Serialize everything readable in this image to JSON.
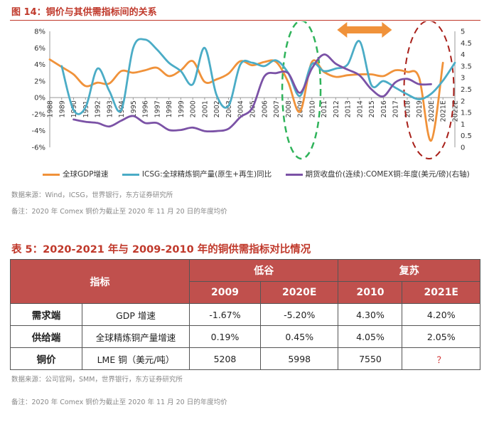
{
  "figure": {
    "title": "图 14：铜价与其供需指标间的关系",
    "source": "数据来源：Wind，ICSG，世界银行，东方证券研究所",
    "note": "备注：2020 年 Comex 铜价为截止至 2020 年 11 月 20 日的年度均价"
  },
  "chart_data": {
    "type": "line",
    "categories": [
      "1988",
      "1989",
      "1990",
      "1991",
      "1992",
      "1993",
      "1994",
      "1995",
      "1996",
      "1997",
      "1998",
      "1999",
      "2000",
      "2001",
      "2002",
      "2003",
      "2004",
      "2005",
      "2006",
      "2007",
      "2008",
      "2009",
      "2010",
      "2011",
      "2012",
      "2013",
      "2014",
      "2015",
      "2016",
      "2017",
      "2018",
      "2019",
      "2020E",
      "2021E",
      "2022E"
    ],
    "y_left": {
      "min": -6,
      "max": 8,
      "step": 2,
      "tick_labels": [
        "-6%",
        "-4%",
        "-2%",
        "0%",
        "2%",
        "4%",
        "6%",
        "8%"
      ]
    },
    "y_right": {
      "min": 0,
      "max": 5,
      "step": 0.5,
      "tick_labels": [
        "0",
        "0.5",
        "1",
        "1.5",
        "2",
        "2.5",
        "3",
        "3.5",
        "4",
        "4.5",
        "5"
      ]
    },
    "series": [
      {
        "name": "全球GDP增速",
        "axis": "left",
        "color": "#f0923a",
        "values": [
          4.6,
          3.7,
          2.8,
          1.4,
          1.8,
          1.7,
          3.2,
          3.0,
          3.3,
          3.6,
          2.6,
          3.3,
          4.4,
          1.9,
          2.2,
          2.9,
          4.4,
          3.9,
          4.3,
          4.3,
          1.9,
          -1.7,
          4.3,
          3.1,
          2.5,
          2.7,
          2.8,
          2.8,
          2.6,
          3.3,
          3.1,
          2.4,
          -5.2,
          4.2,
          null
        ]
      },
      {
        "name": "ICSG:全球精炼铜产量(原生+再生)同比",
        "axis": "left",
        "color": "#4bacc6",
        "values": [
          null,
          3.8,
          -1.5,
          -1.2,
          3.5,
          0.8,
          -1.5,
          6.0,
          7.0,
          5.8,
          4.2,
          3.2,
          1.6,
          6.0,
          0.3,
          -1.0,
          4.0,
          4.2,
          3.8,
          4.5,
          3.0,
          0.2,
          4.05,
          3.2,
          3.5,
          4.0,
          6.8,
          1.5,
          2.0,
          1.2,
          0.4,
          -0.2,
          0.45,
          2.05,
          4.2
        ]
      },
      {
        "name": "期货收盘价(连续):COMEX铜:年度(美元/磅)(右轴)",
        "axis": "right",
        "color": "#7b52a6",
        "values": [
          null,
          null,
          1.2,
          1.1,
          1.05,
          0.9,
          1.15,
          1.35,
          1.05,
          1.05,
          0.75,
          0.75,
          0.85,
          0.7,
          0.7,
          0.8,
          1.3,
          1.7,
          3.05,
          3.2,
          3.2,
          2.35,
          3.4,
          4.0,
          3.6,
          3.35,
          3.1,
          2.5,
          2.2,
          2.8,
          2.95,
          2.72,
          2.72,
          null,
          null
        ]
      }
    ],
    "annotations": [
      "dashed-oval-2009",
      "dashed-oval-2020E",
      "double-arrow-2012-2016"
    ],
    "legend": "bottom",
    "grid": false
  },
  "table": {
    "title": "表 5：2020-2021 年与 2009-2010 年的铜供需指标对比情况",
    "header": {
      "indicator": "指标",
      "trough": "低谷",
      "recovery": "复苏"
    },
    "years": [
      "2009",
      "2020E",
      "2010",
      "2021E"
    ],
    "rows": [
      {
        "category": "需求端",
        "metric": "GDP 增速",
        "values": [
          "-1.67%",
          "-5.20%",
          "4.30%",
          "4.20%"
        ]
      },
      {
        "category": "供给端",
        "metric": "全球精炼铜产量增速",
        "values": [
          "0.19%",
          "0.45%",
          "4.05%",
          "2.05%"
        ]
      },
      {
        "category": "铜价",
        "metric": "LME 铜（美元/吨）",
        "values": [
          "5208",
          "5998",
          "7550",
          "？"
        ]
      }
    ],
    "source": "数据来源：公司官网，SMM，世界银行，东方证券研究所",
    "note": "备注：2020 年 Comex 铜价为截止至 2020 年 11 月 20 日的年度均价"
  }
}
